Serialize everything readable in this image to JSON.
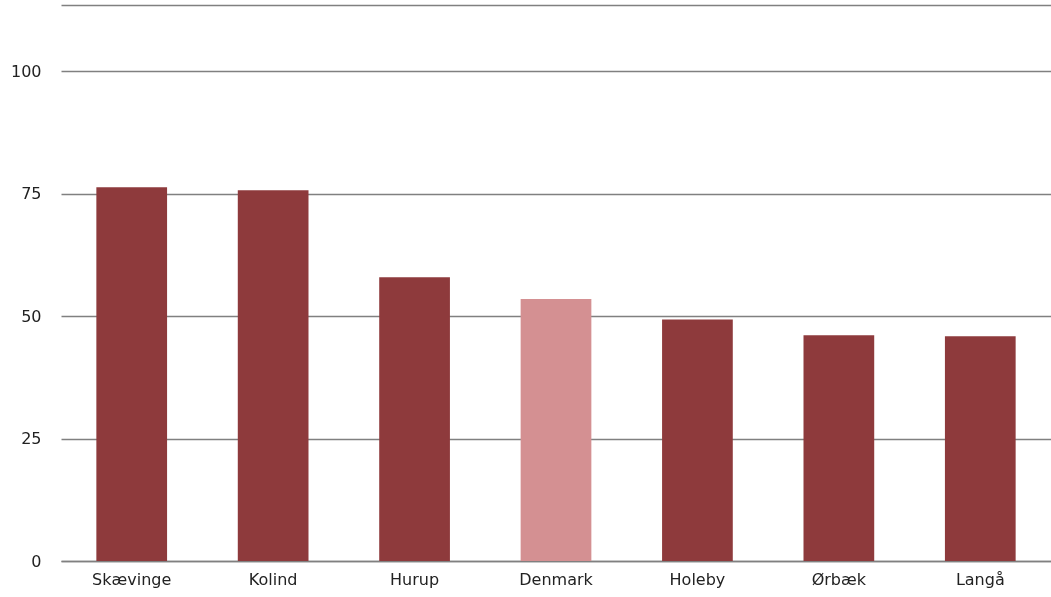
{
  "chart_data": {
    "type": "bar",
    "categories": [
      "Skævinge",
      "Kolind",
      "Hurup",
      "Denmark",
      "Holeby",
      "Ørbæk",
      "Langå"
    ],
    "values": [
      76.3,
      75.7,
      57.9,
      53.5,
      49.3,
      46.1,
      45.9
    ],
    "colors": [
      "#8e3a3c",
      "#8e3a3c",
      "#8e3a3c",
      "#d49092",
      "#8e3a3c",
      "#8e3a3c",
      "#8e3a3c"
    ],
    "ylim": [
      0,
      113.5
    ],
    "yticks": [
      0,
      25,
      50,
      75,
      100,
      {
        "value": 113.5,
        "label": null
      }
    ],
    "grid": "y"
  }
}
